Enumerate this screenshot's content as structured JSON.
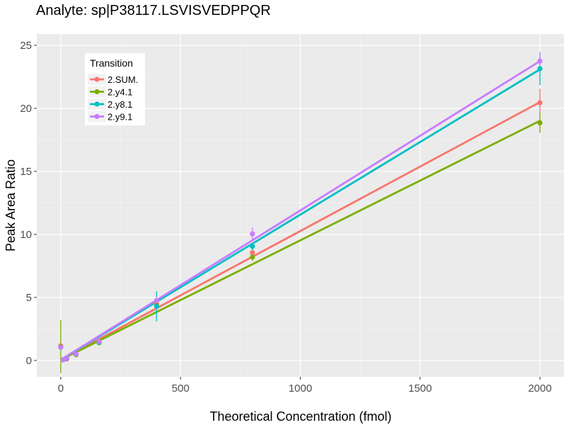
{
  "chart_data": {
    "type": "scatter",
    "title": "Analyte: sp|P38117.LSVISVEDPPQR",
    "xlabel": "Theoretical Concentration (fmol)",
    "ylabel": "Peak Area Ratio",
    "xlim": [
      -100,
      2100
    ],
    "ylim": [
      -1.3,
      25.9
    ],
    "x_ticks": [
      0,
      500,
      1000,
      1500,
      2000
    ],
    "y_ticks": [
      0,
      5,
      10,
      15,
      20,
      25
    ],
    "x_tick_labels": [
      "0",
      "500",
      "1000",
      "1500",
      "2000"
    ],
    "y_tick_labels": [
      "0",
      "5",
      "10",
      "15",
      "20",
      "25"
    ],
    "legend": {
      "title": "Transition",
      "position": "top-left"
    },
    "x": [
      0,
      10,
      25,
      64,
      160,
      400,
      800,
      2000
    ],
    "series": [
      {
        "name": "2.SUM.",
        "color": "#F8766D",
        "values": [
          1.15,
          0.05,
          0.15,
          0.5,
          1.45,
          4.5,
          8.55,
          20.45
        ],
        "err": [
          0.1,
          0.02,
          0.05,
          0.05,
          0.1,
          0.3,
          0.3,
          1.1
        ],
        "fit": {
          "slope": 0.01022,
          "intercept": 0.05
        }
      },
      {
        "name": "2.y4.1",
        "color": "#7CAE00",
        "values": [
          1.1,
          0.05,
          0.12,
          0.45,
          1.4,
          4.35,
          8.2,
          18.85
        ],
        "err": [
          2.1,
          0.02,
          0.05,
          0.05,
          0.1,
          0.3,
          0.3,
          0.8
        ],
        "fit": {
          "slope": 0.00948,
          "intercept": 0.05
        }
      },
      {
        "name": "2.y8.1",
        "color": "#00BFC4",
        "values": [
          1.05,
          0.05,
          0.15,
          0.5,
          1.45,
          4.3,
          9.05,
          23.15
        ],
        "err": [
          0.1,
          0.02,
          0.05,
          0.05,
          0.1,
          1.2,
          0.3,
          1.3
        ],
        "fit": {
          "slope": 0.01152,
          "intercept": 0.05
        }
      },
      {
        "name": "2.y9.1",
        "color": "#C77CFF",
        "values": [
          1.05,
          0.05,
          0.15,
          0.5,
          1.5,
          4.75,
          10.05,
          23.75
        ],
        "err": [
          0.1,
          0.02,
          0.05,
          0.05,
          0.1,
          0.3,
          0.5,
          0.7
        ],
        "fit": {
          "slope": 0.01185,
          "intercept": 0.05
        }
      }
    ]
  }
}
